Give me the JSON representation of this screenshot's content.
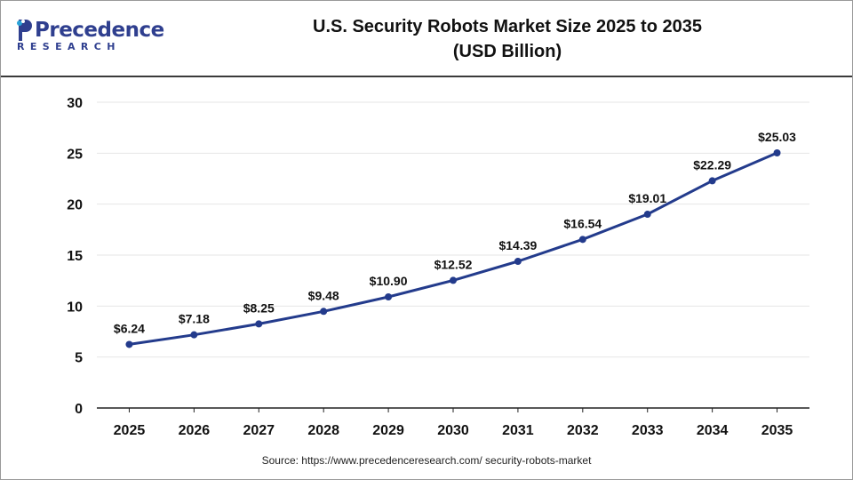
{
  "brand": {
    "logo_word": "Precedence",
    "logo_sub": "RESEARCH"
  },
  "header": {
    "title_line1": "U.S. Security Robots Market Size 2025 to 2035",
    "title_line2": "(USD Billion)"
  },
  "footer": {
    "source": "Source: https://www.precedenceresearch.com/ security-robots-market"
  },
  "colors": {
    "line": "#233b8c",
    "marker": "#233b8c",
    "grid": "#e6e6e6",
    "axis": "#222222",
    "brand": "#2f3f8f"
  },
  "chart_data": {
    "type": "line",
    "title": "U.S. Security Robots Market Size 2025 to 2035 (USD Billion)",
    "xlabel": "",
    "ylabel": "",
    "categories": [
      "2025",
      "2026",
      "2027",
      "2028",
      "2029",
      "2030",
      "2031",
      "2032",
      "2033",
      "2034",
      "2035"
    ],
    "series": [
      {
        "values": [
          6.24,
          7.18,
          8.25,
          9.48,
          10.9,
          12.52,
          14.39,
          16.54,
          19.01,
          22.29,
          25.03
        ],
        "labels": [
          "$6.24",
          "$7.18",
          "$8.25",
          "$9.48",
          "$10.90",
          "$12.52",
          "$14.39",
          "$16.54",
          "$19.01",
          "$22.29",
          "$25.03"
        ]
      }
    ],
    "ylim": [
      0,
      30
    ],
    "yticks": [
      "0",
      "5",
      "10",
      "15",
      "20",
      "25",
      "30"
    ],
    "grid": true,
    "legend": "none"
  }
}
